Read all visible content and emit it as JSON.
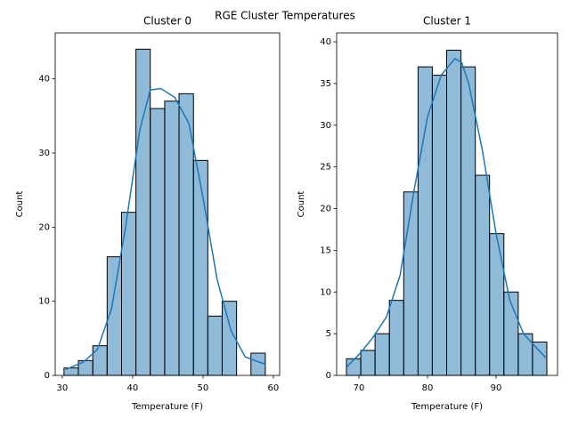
{
  "title": "RGE Cluster Temperatures",
  "chart_data": [
    {
      "type": "histogram",
      "title": "Cluster 0",
      "x_label": "Temperature (F)",
      "y_label": "Count",
      "color": "#1f77b4",
      "bins": [
        30.25,
        32.29,
        34.34,
        36.38,
        38.43,
        40.47,
        42.51,
        44.56,
        46.6,
        48.65,
        50.69,
        52.73,
        54.78,
        56.82,
        58.86
      ],
      "values": [
        1,
        2,
        4,
        16,
        22,
        44,
        36,
        37,
        38,
        29,
        8,
        10,
        0,
        3
      ],
      "kde": {
        "x": [
          30.5,
          33,
          35,
          37,
          39,
          41,
          42.5,
          44,
          46,
          48,
          50,
          52,
          54,
          56,
          58,
          58.9
        ],
        "values": [
          0.8,
          1.8,
          3.5,
          9,
          20,
          33,
          38.5,
          38.7,
          37.5,
          34,
          24,
          13,
          6,
          2.5,
          1.8,
          1.5
        ]
      },
      "xlim": [
        29.0,
        60.9
      ],
      "xticks": [
        30,
        40,
        50,
        60
      ],
      "ylim": [
        0,
        46.2
      ],
      "yticks": [
        0,
        10,
        20,
        30,
        40
      ]
    },
    {
      "type": "histogram",
      "title": "Cluster 1",
      "x_label": "Temperature (F)",
      "y_label": "Count",
      "color": "#1f77b4",
      "bins": [
        68.18,
        70.27,
        72.35,
        74.44,
        76.53,
        78.62,
        80.7,
        82.79,
        84.88,
        86.97,
        89.05,
        91.14,
        93.23,
        95.31,
        97.4
      ],
      "values": [
        2,
        3,
        5,
        9,
        22,
        37,
        36,
        39,
        37,
        24,
        17,
        10,
        5,
        4
      ],
      "kde": {
        "x": [
          68.2,
          70,
          72,
          74,
          76,
          78,
          80,
          82,
          84,
          85,
          86,
          88,
          90,
          92,
          94,
          96,
          97.4
        ],
        "values": [
          1,
          2.5,
          4.5,
          7,
          12,
          22,
          31,
          36,
          38,
          37.5,
          35,
          27,
          17,
          9,
          5,
          3.2,
          2
        ]
      },
      "xlim": [
        66.75,
        98.96
      ],
      "xticks": [
        70,
        80,
        90
      ],
      "ylim": [
        0,
        41.07
      ],
      "yticks": [
        0,
        5,
        10,
        15,
        20,
        25,
        30,
        35,
        40
      ]
    }
  ]
}
